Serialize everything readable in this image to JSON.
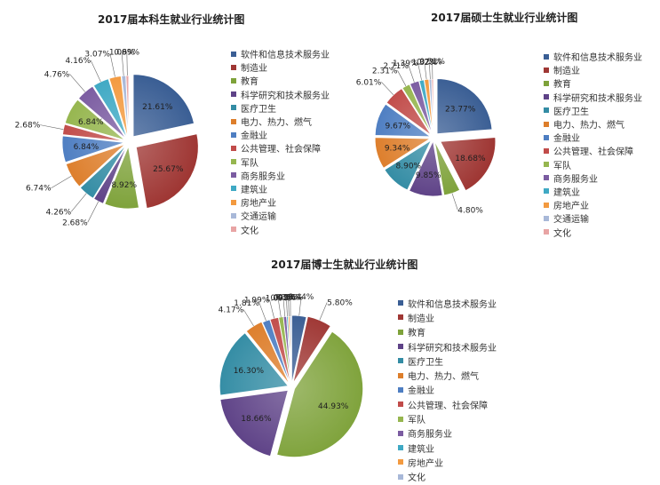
{
  "chart_data": [
    {
      "type": "pie",
      "title": "2017届本科生就业行业统计图",
      "legend_position": "right",
      "labels": [
        "软件和信息技术服务业",
        "制造业",
        "教育",
        "科学研究和技术服务业",
        "医疗卫生",
        "电力、热力、燃气",
        "金融业",
        "公共管理、社会保障",
        "军队",
        "商务服务业",
        "建筑业",
        "房地产业",
        "交通运输",
        "文化"
      ],
      "values": [
        21.61,
        25.67,
        8.92,
        2.68,
        4.26,
        6.74,
        6.84,
        2.68,
        6.84,
        4.76,
        4.16,
        3.07,
        1.09,
        0.69
      ],
      "value_labels": [
        "21.61%",
        "25.67%",
        "8.92%",
        "2.68%",
        "4.26%",
        "6.74%",
        "6.84%",
        "2.68%",
        "6.84%",
        "4.76%",
        "4.16%",
        "3.07%",
        "1.09%",
        "0.69%"
      ],
      "colors": [
        "#3A5E94",
        "#9F3734",
        "#7EA23A",
        "#5E4287",
        "#338CA4",
        "#DD7E2B",
        "#4E7EC2",
        "#C14C4A",
        "#96B64F",
        "#7B5CA1",
        "#3FA9C4",
        "#F39A40",
        "#A8B8D8",
        "#E8A4A4"
      ]
    },
    {
      "type": "pie",
      "title": "2017届硕士生就业行业统计图",
      "legend_position": "right",
      "labels": [
        "软件和信息技术服务业",
        "制造业",
        "教育",
        "科学研究和技术服务业",
        "医疗卫生",
        "电力、热力、燃气",
        "金融业",
        "公共管理、社会保障",
        "军队",
        "商务服务业",
        "建筑业",
        "房地产业",
        "交通运输",
        "文化"
      ],
      "values": [
        23.77,
        18.68,
        4.8,
        9.85,
        8.9,
        9.34,
        9.67,
        6.01,
        2.31,
        2.71,
        1.39,
        1.32,
        0.73,
        0.51
      ],
      "value_labels": [
        "23.77%",
        "18.68%",
        "4.80%",
        "9.85%",
        "8.90%",
        "9.34%",
        "9.67%",
        "6.01%",
        "2.31%",
        "2.71%",
        "1.39%",
        "1.32%",
        "0.73%",
        "0.51%"
      ],
      "colors": [
        "#3A5E94",
        "#9F3734",
        "#7EA23A",
        "#5E4287",
        "#338CA4",
        "#DD7E2B",
        "#4E7EC2",
        "#C14C4A",
        "#96B64F",
        "#7B5CA1",
        "#3FA9C4",
        "#F39A40",
        "#A8B8D8",
        "#E8A4A4"
      ]
    },
    {
      "type": "pie",
      "title": "2017届博士生就业行业统计图",
      "legend_position": "right",
      "labels": [
        "软件和信息技术服务业",
        "制造业",
        "教育",
        "科学研究和技术服务业",
        "医疗卫生",
        "电力、热力、燃气",
        "金融业",
        "公共管理、社会保障",
        "军队",
        "商务服务业",
        "建筑业",
        "房地产业",
        "文化"
      ],
      "values": [
        3.44,
        5.8,
        44.93,
        18.66,
        16.3,
        4.17,
        1.81,
        1.99,
        1.09,
        0.72,
        0.36,
        0.36,
        0.36
      ],
      "value_labels": [
        "3.44%",
        "5.80%",
        "44.93%",
        "18.66%",
        "16.30%",
        "4.17%",
        "1.81%",
        "1.99%",
        "1.09%",
        "0.72%",
        "0.36%",
        "0.36%",
        "0.36%"
      ],
      "colors": [
        "#3A5E94",
        "#9F3734",
        "#7EA23A",
        "#5E4287",
        "#338CA4",
        "#DD7E2B",
        "#4E7EC2",
        "#C14C4A",
        "#96B64F",
        "#7B5CA1",
        "#3FA9C4",
        "#F39A40",
        "#A8B8D8"
      ]
    }
  ]
}
